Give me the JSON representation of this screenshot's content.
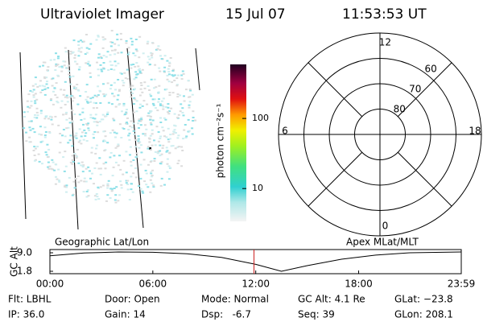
{
  "header": {
    "title": "Ultraviolet Imager",
    "date": "15 Jul 07",
    "time": "11:53:53 UT"
  },
  "colorbar": {
    "label": "photon cm⁻²s⁻¹",
    "scale": "log",
    "clim": [
      3.4,
      590
    ],
    "ticks": [
      10,
      100
    ]
  },
  "polar": {
    "mlt_ticks": [
      12,
      6,
      0,
      18
    ],
    "lat_ticks": [
      80,
      70,
      60
    ],
    "rlim": [
      90,
      50
    ]
  },
  "timeline": {
    "type": "line",
    "title_left": "Geographic Lat/Lon",
    "title_right": "Apex MLat/MLT",
    "ylabel": "GC Alt",
    "x": [
      0,
      2,
      4,
      6,
      8,
      10,
      12,
      13.5,
      15,
      17,
      19,
      21,
      23.983
    ],
    "values": [
      7.8,
      8.9,
      9.3,
      9.2,
      8.6,
      7.2,
      4.5,
      1.8,
      4.0,
      6.5,
      8.1,
      9.0,
      9.3
    ],
    "color": "#000000",
    "marker_x": 11.898,
    "marker_color": "#cc2222",
    "xlim": [
      0,
      23.983
    ],
    "ylim": [
      0.86,
      10.25
    ],
    "xticks": [
      {
        "value": 0,
        "label": "00:00"
      },
      {
        "value": 6,
        "label": "06:00"
      },
      {
        "value": 12,
        "label": "12:00"
      },
      {
        "value": 18,
        "label": "18:00"
      },
      {
        "value": 23.983,
        "label": "23:59"
      }
    ],
    "yticks": [
      {
        "value": 9,
        "label": "9.0"
      },
      {
        "value": 1.8,
        "label": "1.8"
      }
    ]
  },
  "footer": {
    "fields": [
      "Flt: LBHL",
      "IP: 36.0",
      "Door: Open",
      "Gain: 14",
      "Mode: Normal",
      "Dsp:   -6.7",
      "GC Alt: 4.1 Re",
      "Seq: 39",
      "GLat: −23.8",
      "GLon: 208.1"
    ]
  }
}
